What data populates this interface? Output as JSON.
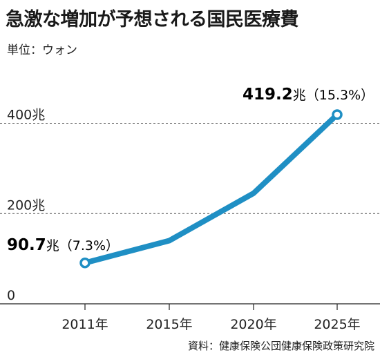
{
  "title": "急激な増加が予想される国民医療費",
  "unit_label": "単位：ウォン",
  "source": "資料：健康保険公団健康保険政策研究院",
  "chart_data": {
    "type": "line",
    "title": "急激な増加が予想される国民医療費",
    "ylabel": "単位：ウォン",
    "x": [
      "2011年",
      "2015年",
      "2020年",
      "2025年"
    ],
    "series": [
      {
        "values": [
          90.7,
          140,
          245,
          419.2
        ]
      }
    ],
    "ylim": [
      0,
      419.2
    ],
    "yticks": [
      {
        "value": 0,
        "label": "0"
      },
      {
        "value": 200,
        "label": "200兆"
      },
      {
        "value": 400,
        "label": "400兆"
      }
    ],
    "annotations": [
      {
        "x": "2011年",
        "value_text": "90.7",
        "unit": "兆",
        "pct": "（7.3%）"
      },
      {
        "x": "2025年",
        "value_text": "419.2",
        "unit": "兆",
        "pct": "（15.3%）"
      }
    ],
    "grid": "dashed-horizontal",
    "line_color": "#1f8fc4"
  }
}
